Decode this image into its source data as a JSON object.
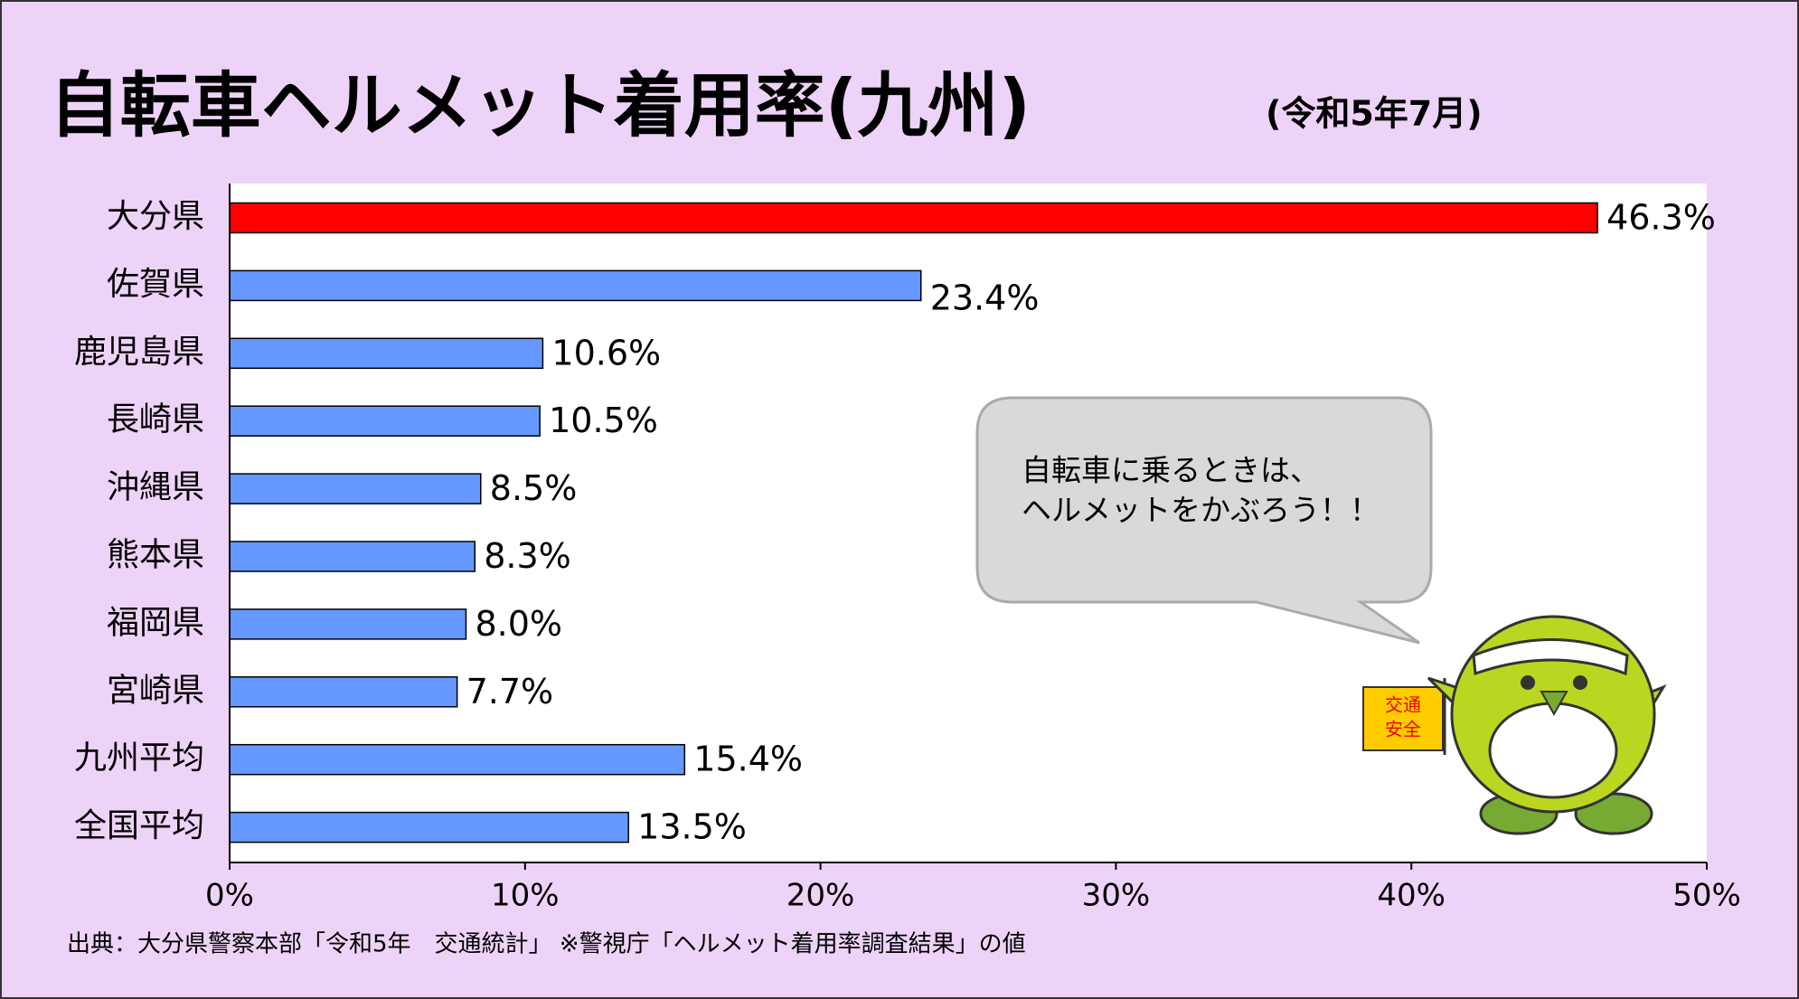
{
  "chart_data": {
    "type": "bar",
    "orientation": "horizontal",
    "title": "自転車ヘルメット着用率(九州)",
    "subtitle": "(令和5年7月)",
    "categories": [
      "大分県",
      "佐賀県",
      "鹿児島県",
      "長崎県",
      "沖縄県",
      "熊本県",
      "福岡県",
      "宮崎県",
      "九州平均",
      "全国平均"
    ],
    "values": [
      46.3,
      23.4,
      10.6,
      10.5,
      8.5,
      8.3,
      8.0,
      7.7,
      15.4,
      13.5
    ],
    "value_labels": [
      "46.3%",
      "23.4%",
      "10.6%",
      "10.5%",
      "8.5%",
      "8.3%",
      "8.0%",
      "7.7%",
      "15.4%",
      "13.5%"
    ],
    "colors": [
      "#ff0000",
      "#6699ff",
      "#6699ff",
      "#6699ff",
      "#6699ff",
      "#6699ff",
      "#6699ff",
      "#6699ff",
      "#6699ff",
      "#6699ff"
    ],
    "xlim": [
      0,
      50
    ],
    "xticks": [
      {
        "value": 0,
        "label": "0%"
      },
      {
        "value": 10,
        "label": "10%"
      },
      {
        "value": 20,
        "label": "20%"
      },
      {
        "value": 30,
        "label": "30%"
      },
      {
        "value": 40,
        "label": "40%"
      },
      {
        "value": 50,
        "label": "50%"
      }
    ],
    "source": "出典：大分県警察本部「令和5年　交通統計」 ※警視庁「ヘルメット着用率調査結果」の値"
  },
  "callout": {
    "lines": [
      "自転車に乗るときは、",
      "ヘルメットをかぶろう！！"
    ],
    "flag": [
      "交通",
      "安全"
    ]
  }
}
